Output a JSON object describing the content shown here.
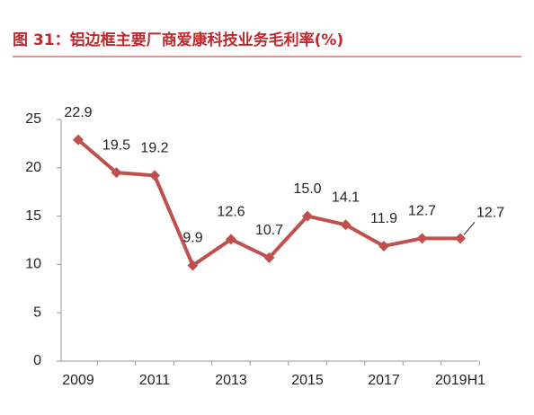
{
  "chart_data": {
    "type": "line",
    "title": "图 31：铝边框主要厂商爱康科技业务毛利率(%)",
    "categories": [
      "2009",
      null,
      "2011",
      null,
      "2013",
      null,
      "2015",
      null,
      "2017",
      null,
      "2019H1"
    ],
    "series": [
      {
        "name": "毛利率",
        "color": "#c0504d",
        "values": [
          22.9,
          19.5,
          19.2,
          9.9,
          12.6,
          10.7,
          15.0,
          14.1,
          11.9,
          12.7,
          12.7
        ],
        "value_labels": [
          "22.9",
          "19.5",
          "19.2",
          "9.9",
          "12.6",
          "10.7",
          "15.0",
          "14.1",
          "11.9",
          "12.7",
          "12.7"
        ]
      }
    ],
    "ylim": [
      0,
      25
    ],
    "yticks": [
      0,
      5,
      10,
      15,
      20,
      25
    ],
    "grid": false
  }
}
